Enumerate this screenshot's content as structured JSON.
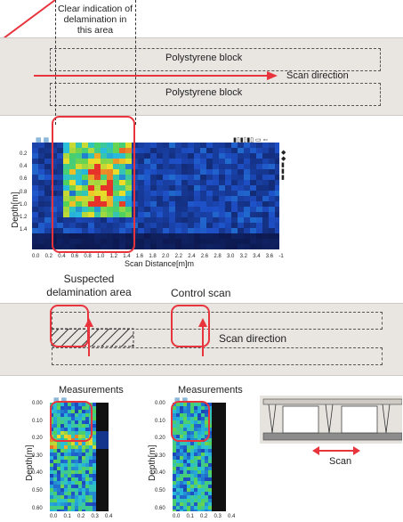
{
  "top": {
    "callout": "Clear indication of delamination in this area",
    "block_top": "Polystyrene block",
    "block_bottom": "Polystyrene block",
    "scan_direction": "Scan direction"
  },
  "scan1": {
    "ylabel": "Depth[m]",
    "xlabel": "Scan Distance[m]m",
    "yticks": [
      "0.2",
      "0.4",
      "0.6",
      "0.8",
      "1.0",
      "1.2",
      "1.4"
    ],
    "xticks": [
      "0.0",
      "0.2",
      "0.4",
      "0.6",
      "0.8",
      "1.0",
      "1.2",
      "1.4",
      "1.6",
      "1.8",
      "2.0",
      "2.2",
      "2.4",
      "2.6",
      "2.8",
      "3.0",
      "3.2",
      "3.4",
      "3.6",
      "-1"
    ]
  },
  "middle": {
    "suspected": "Suspected delamination area",
    "control": "Control scan",
    "scan_direction": "Scan direction"
  },
  "small_scans": [
    {
      "title": "Measurements",
      "ylabel": "Depth[m]",
      "yticks": [
        "0.00",
        "0.10",
        "0.20",
        "0.30",
        "0.40",
        "0.50",
        "0.60"
      ],
      "xticks": [
        "0.0",
        "0.1",
        "0.2",
        "0.3",
        "0.4"
      ]
    },
    {
      "title": "Measurements",
      "ylabel": "Depth[m]",
      "yticks": [
        "0.00",
        "0.10",
        "0.20",
        "0.30",
        "0.40",
        "0.50",
        "0.60"
      ],
      "xticks": [
        "0.0",
        "0.1",
        "0.2",
        "0.3",
        "0.4"
      ]
    }
  ],
  "diagram": {
    "scan_label": "Scan"
  },
  "colors": {
    "accent_red": "#e8343c",
    "panel": "#e9e6e2"
  }
}
